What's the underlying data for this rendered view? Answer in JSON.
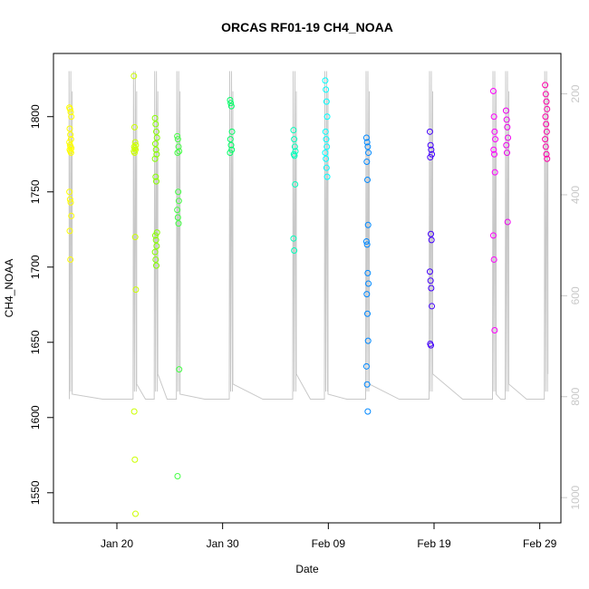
{
  "chart_data": {
    "type": "scatter",
    "title": "ORCAS RF01-19 CH4_NOAA",
    "xlabel": "Date",
    "ylabel": "CH4_NOAA",
    "x_range": [
      "2016-01-14",
      "2016-03-02"
    ],
    "y_range": [
      1530,
      1842
    ],
    "y_ticks": [
      1550,
      1600,
      1650,
      1700,
      1750,
      1800
    ],
    "x_ticks": [
      {
        "date": "2016-01-20",
        "label": "Jan 20"
      },
      {
        "date": "2016-01-30",
        "label": "Jan 30"
      },
      {
        "date": "2016-02-09",
        "label": "Feb 09"
      },
      {
        "date": "2016-02-19",
        "label": "Feb 19"
      },
      {
        "date": "2016-02-29",
        "label": "Feb 29"
      }
    ],
    "right_axis": {
      "range": [
        1050,
        120
      ],
      "ticks": [
        200,
        400,
        600,
        800,
        1000
      ],
      "color": "#c8c8c8"
    },
    "line_color": "#c8c8c8",
    "flights": [
      {
        "day": 15.6,
        "color": "#ffff00",
        "values": [
          1806,
          1805,
          1803,
          1800,
          1792,
          1788,
          1785,
          1783,
          1781,
          1780,
          1779,
          1778,
          1777,
          1776,
          1750,
          1745,
          1743,
          1734,
          1724,
          1705
        ]
      },
      {
        "day": 21.7,
        "color": "#ccff00",
        "values": [
          1827,
          1793,
          1783,
          1781,
          1780,
          1779,
          1778,
          1777,
          1776,
          1720,
          1685,
          1604,
          1572,
          1536
        ]
      },
      {
        "day": 23.7,
        "color": "#88ff00",
        "values": [
          1799,
          1795,
          1790,
          1786,
          1782,
          1778,
          1775,
          1772,
          1760,
          1757,
          1723,
          1721,
          1718,
          1714,
          1710,
          1705,
          1701
        ]
      },
      {
        "day": 25.8,
        "color": "#44ff44",
        "values": [
          1787,
          1785,
          1780,
          1777,
          1776,
          1750,
          1744,
          1738,
          1733,
          1729,
          1632,
          1561
        ]
      },
      {
        "day": 30.8,
        "color": "#00ff66",
        "values": [
          1811,
          1809,
          1807,
          1790,
          1785,
          1781,
          1778,
          1776
        ]
      },
      {
        "day": 36.8,
        "color": "#00ffbb",
        "values": [
          1791,
          1785,
          1780,
          1777,
          1775,
          1774,
          1755,
          1719,
          1711
        ]
      },
      {
        "day": 39.8,
        "color": "#00ffff",
        "values": [
          1824,
          1818,
          1810,
          1800,
          1790,
          1785,
          1780,
          1776,
          1772,
          1766,
          1760
        ]
      },
      {
        "day": 43.7,
        "color": "#0088ff",
        "values": [
          1786,
          1783,
          1780,
          1776,
          1770,
          1758,
          1728,
          1717,
          1715,
          1696,
          1689,
          1682,
          1669,
          1651,
          1634,
          1622,
          1604
        ]
      },
      {
        "day": 49.7,
        "color": "#4400ff",
        "values": [
          1790,
          1781,
          1778,
          1775,
          1773,
          1722,
          1718,
          1697,
          1691,
          1686,
          1674,
          1649,
          1648
        ]
      },
      {
        "day": 55.7,
        "color": "#ff00ff",
        "values": [
          1817,
          1800,
          1790,
          1785,
          1778,
          1775,
          1763,
          1721,
          1705,
          1658
        ]
      },
      {
        "day": 56.9,
        "color": "#ee00ee",
        "values": [
          1804,
          1798,
          1793,
          1786,
          1781,
          1776,
          1730
        ]
      },
      {
        "day": 60.6,
        "color": "#ff00aa",
        "values": [
          1821,
          1815,
          1810,
          1805,
          1800,
          1795,
          1790,
          1785,
          1780,
          1775,
          1772
        ]
      }
    ],
    "grid": false,
    "legend": "none"
  }
}
